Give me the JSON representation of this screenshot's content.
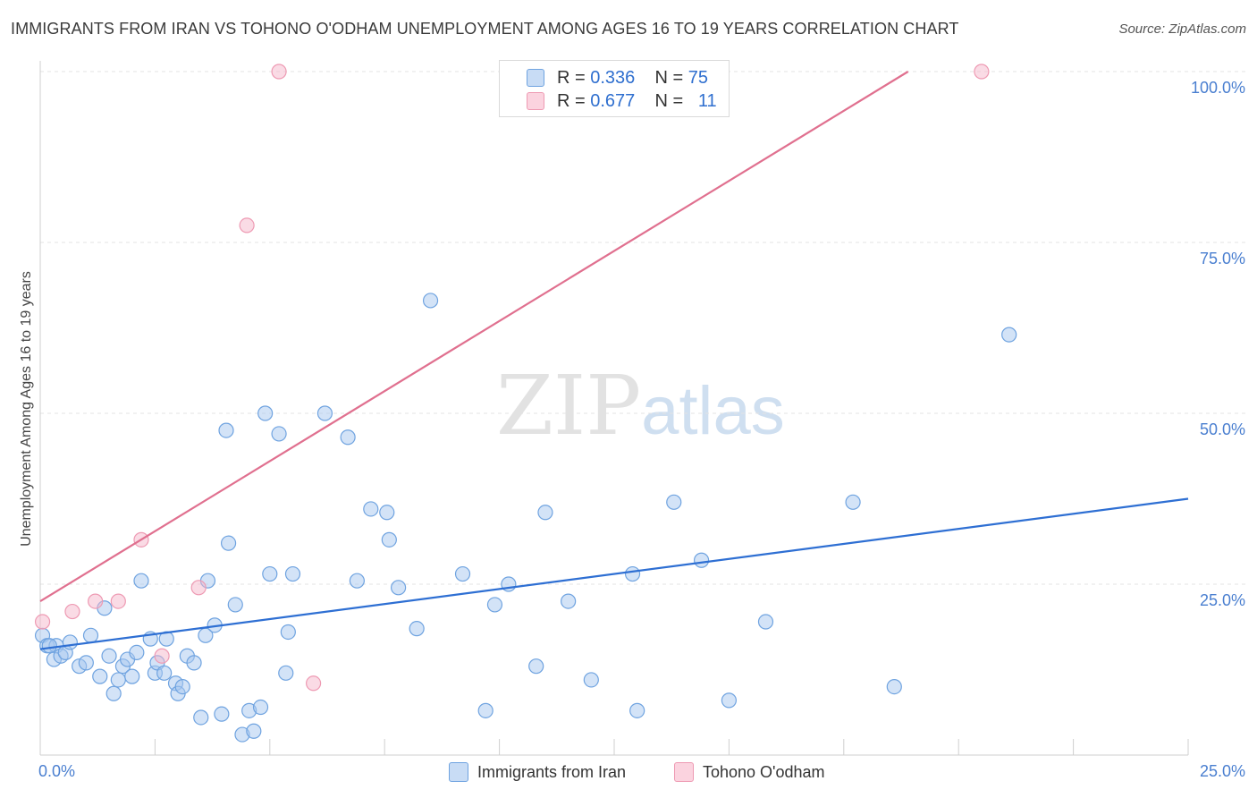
{
  "title": "IMMIGRANTS FROM IRAN VS TOHONO O'ODHAM UNEMPLOYMENT AMONG AGES 16 TO 19 YEARS CORRELATION CHART",
  "source": "Source: ZipAtlas.com",
  "watermark": {
    "zip": "ZIP",
    "atlas": "atlas"
  },
  "legend": {
    "rows": [
      {
        "r_label": "R =",
        "r_value": "0.336",
        "n_label": "N =",
        "n_value": "75",
        "color": "#a8c8f0"
      },
      {
        "r_label": "R =",
        "r_value": "0.677",
        "n_label": "N =",
        "n_value": "11",
        "color": "#f6b8cb"
      }
    ]
  },
  "chart_data": {
    "type": "scatter",
    "title": "IMMIGRANTS FROM IRAN VS TOHONO O'ODHAM UNEMPLOYMENT AMONG AGES 16 TO 19 YEARS CORRELATION CHART",
    "xlabel": "",
    "ylabel": "Unemployment Among Ages 16 to 19 years",
    "xlim": [
      0,
      25
    ],
    "ylim": [
      0,
      100
    ],
    "x_tick_labels": [
      "0.0%",
      "25.0%"
    ],
    "y_tick_labels": [
      "25.0%",
      "50.0%",
      "75.0%",
      "100.0%"
    ],
    "y_ticks": [
      25,
      50,
      75,
      100
    ],
    "grid": true,
    "legend_position": "bottom",
    "series": [
      {
        "name": "Immigrants from Iran",
        "color": "#6fa3e0",
        "fill": "#a8c8f0",
        "trend": {
          "x": [
            0,
            25
          ],
          "y": [
            15.5,
            37.5
          ],
          "color": "#2e6fd3"
        },
        "points": [
          [
            0.05,
            17.5
          ],
          [
            0.15,
            16
          ],
          [
            0.3,
            14
          ],
          [
            0.35,
            16
          ],
          [
            0.45,
            14.5
          ],
          [
            0.55,
            15
          ],
          [
            0.65,
            16.5
          ],
          [
            0.85,
            13
          ],
          [
            1.0,
            13.5
          ],
          [
            1.1,
            17.5
          ],
          [
            1.3,
            11.5
          ],
          [
            1.4,
            21.5
          ],
          [
            1.5,
            14.5
          ],
          [
            1.6,
            9
          ],
          [
            1.7,
            11
          ],
          [
            1.8,
            13
          ],
          [
            1.9,
            14
          ],
          [
            2.0,
            11.5
          ],
          [
            2.1,
            15
          ],
          [
            2.2,
            25.5
          ],
          [
            2.4,
            17
          ],
          [
            2.5,
            12
          ],
          [
            2.55,
            13.5
          ],
          [
            2.7,
            12
          ],
          [
            2.75,
            17
          ],
          [
            2.95,
            10.5
          ],
          [
            3.0,
            9
          ],
          [
            3.1,
            10
          ],
          [
            3.2,
            14.5
          ],
          [
            3.35,
            13.5
          ],
          [
            3.5,
            5.5
          ],
          [
            3.6,
            17.5
          ],
          [
            3.65,
            25.5
          ],
          [
            3.8,
            19
          ],
          [
            3.95,
            6
          ],
          [
            4.05,
            47.5
          ],
          [
            4.1,
            31
          ],
          [
            4.25,
            22
          ],
          [
            4.4,
            3
          ],
          [
            4.55,
            6.5
          ],
          [
            4.65,
            3.5
          ],
          [
            4.8,
            7
          ],
          [
            4.9,
            50
          ],
          [
            5.0,
            26.5
          ],
          [
            5.2,
            47
          ],
          [
            5.35,
            12
          ],
          [
            5.4,
            18
          ],
          [
            5.5,
            26.5
          ],
          [
            6.2,
            50
          ],
          [
            6.7,
            46.5
          ],
          [
            6.9,
            25.5
          ],
          [
            7.2,
            36
          ],
          [
            7.55,
            35.5
          ],
          [
            7.6,
            31.5
          ],
          [
            7.8,
            24.5
          ],
          [
            8.2,
            18.5
          ],
          [
            8.5,
            66.5
          ],
          [
            9.2,
            26.5
          ],
          [
            9.7,
            6.5
          ],
          [
            9.9,
            22
          ],
          [
            10.2,
            25
          ],
          [
            10.8,
            13
          ],
          [
            11.0,
            35.5
          ],
          [
            11.5,
            22.5
          ],
          [
            12.0,
            11
          ],
          [
            12.9,
            26.5
          ],
          [
            13.0,
            6.5
          ],
          [
            13.8,
            37
          ],
          [
            14.4,
            28.5
          ],
          [
            15.0,
            8
          ],
          [
            15.8,
            19.5
          ],
          [
            17.7,
            37
          ],
          [
            18.6,
            10
          ],
          [
            21.1,
            61.5
          ],
          [
            0.2,
            16
          ]
        ]
      },
      {
        "name": "Tohono O'odham",
        "color": "#ee9ab3",
        "fill": "#f6b8cb",
        "trend": {
          "x": [
            0,
            18.9
          ],
          "y": [
            22.5,
            100
          ],
          "color": "#e0708f"
        },
        "points": [
          [
            0.05,
            19.5
          ],
          [
            0.7,
            21
          ],
          [
            1.2,
            22.5
          ],
          [
            1.7,
            22.5
          ],
          [
            2.2,
            31.5
          ],
          [
            2.65,
            14.5
          ],
          [
            3.45,
            24.5
          ],
          [
            4.5,
            77.5
          ],
          [
            5.2,
            100
          ],
          [
            5.95,
            10.5
          ],
          [
            20.5,
            100
          ]
        ]
      }
    ]
  }
}
